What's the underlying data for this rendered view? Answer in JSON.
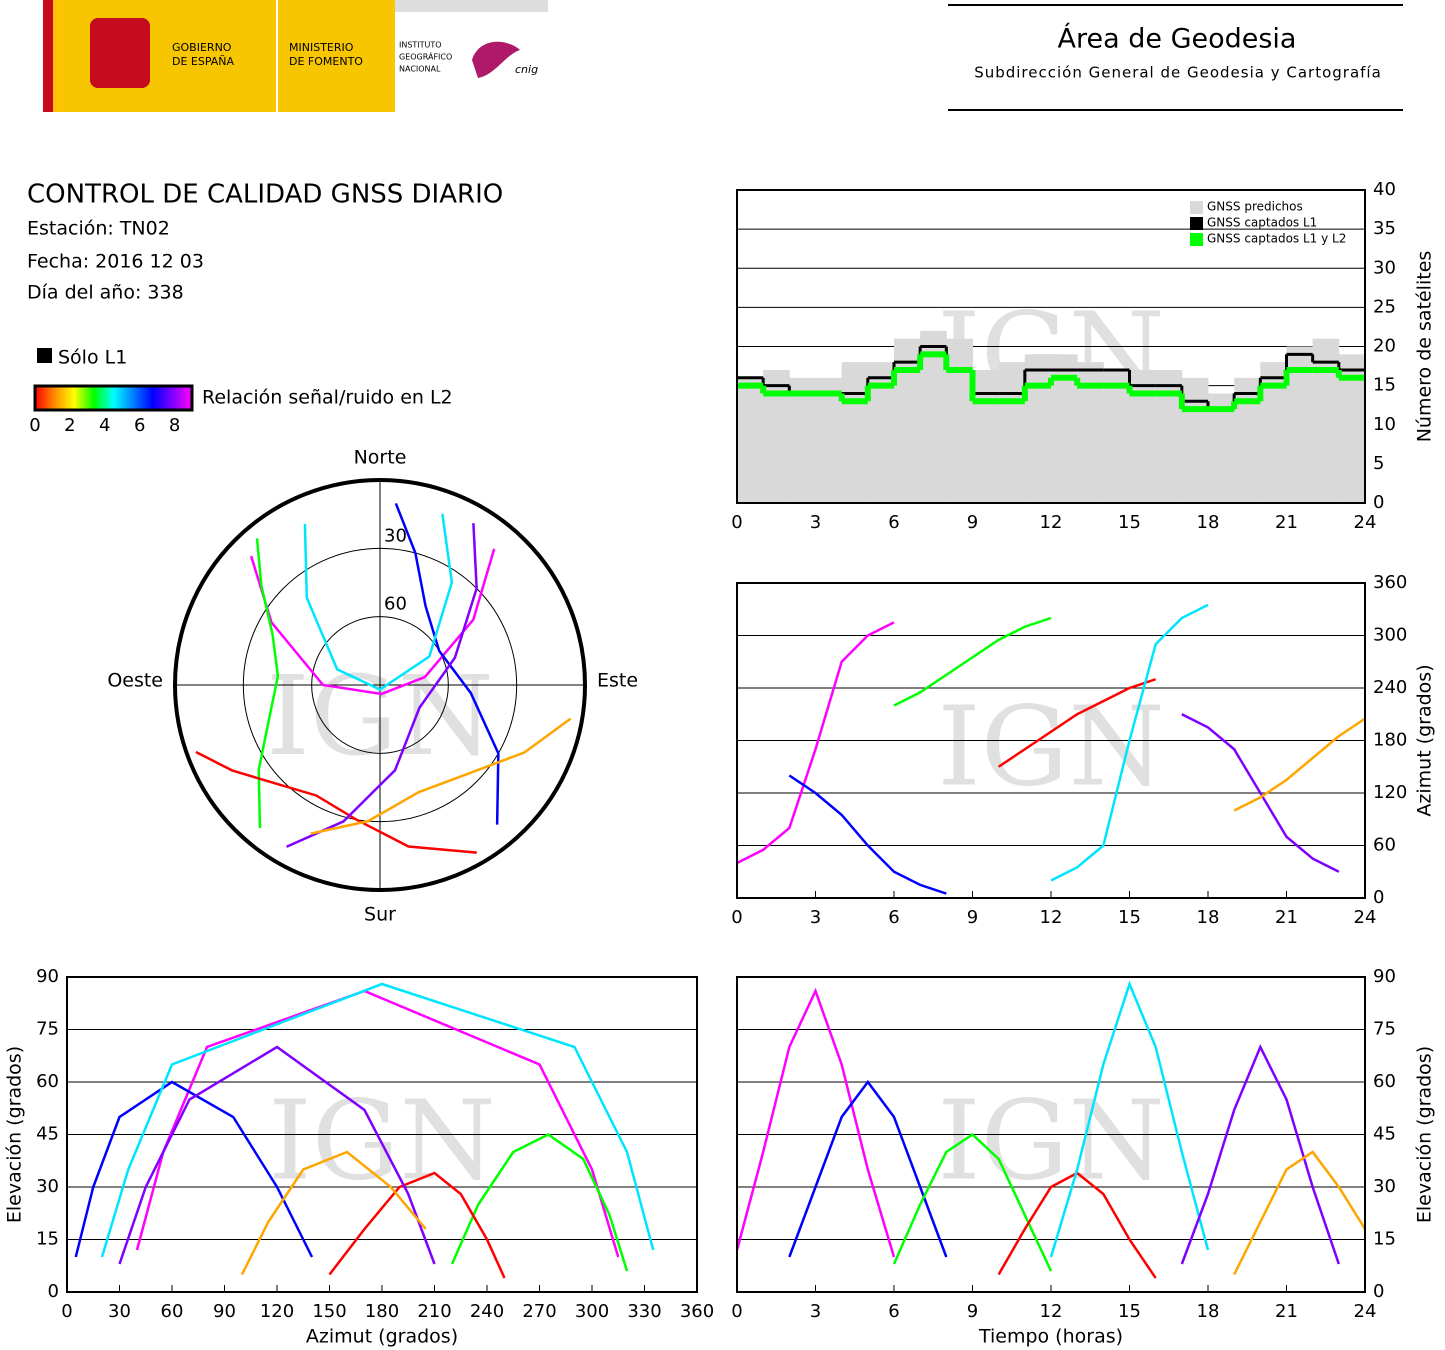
{
  "header": {
    "gobierno": [
      "GOBIERNO",
      "DE ESPAÑA"
    ],
    "ministerio": [
      "MINISTERIO",
      "DE FOMENTO"
    ],
    "instituto": [
      "INSTITUTO",
      "GEOGRÁFICO",
      "NACIONAL"
    ],
    "cnig": "cnig",
    "area": "Área de Geodesia",
    "subdireccion": "Subdirección General de Geodesia y Cartografía"
  },
  "report": {
    "title": "CONTROL DE CALIDAD GNSS DIARIO",
    "station": "Estación: TN02",
    "date": "Fecha: 2016 12 03",
    "doy": "Día del año: 338",
    "l1_only": "Sólo L1",
    "colorbar": {
      "label": "Relación señal/ruido en L2",
      "lim": [
        0,
        9
      ],
      "ticks": [
        0,
        2,
        4,
        6,
        8
      ],
      "colors": [
        "#ff0000",
        "#ff8c00",
        "#ffff00",
        "#00ff00",
        "#00ffff",
        "#0080ff",
        "#0000ff",
        "#8000ff",
        "#ff00ff"
      ]
    }
  },
  "chart_data": [
    {
      "type": "step",
      "watermark": "IGN",
      "x": [
        0,
        1,
        2,
        3,
        4,
        5,
        6,
        7,
        8,
        9,
        10,
        11,
        12,
        13,
        14,
        15,
        16,
        17,
        18,
        19,
        20,
        21,
        22,
        23
      ],
      "series": [
        {
          "name": "GNSS predichos",
          "color": "#d9d9d9",
          "values": [
            16,
            17,
            16,
            16,
            18,
            18,
            21,
            22,
            21,
            17,
            18,
            19,
            19,
            18,
            17,
            17,
            17,
            16,
            14,
            16,
            18,
            20,
            21,
            19
          ]
        },
        {
          "name": "GNSS captados L1",
          "color": "#000000",
          "values": [
            16,
            15,
            14,
            14,
            14,
            16,
            18,
            20,
            17,
            14,
            14,
            17,
            17,
            17,
            17,
            15,
            15,
            13,
            12,
            14,
            16,
            19,
            18,
            17
          ]
        },
        {
          "name": "GNSS captados L1 y L2",
          "color": "#00ff00",
          "values": [
            15,
            14,
            14,
            14,
            13,
            15,
            17,
            19,
            17,
            13,
            13,
            15,
            16,
            15,
            15,
            14,
            14,
            12,
            12,
            13,
            15,
            17,
            17,
            16
          ]
        }
      ],
      "xlim": [
        0,
        24
      ],
      "xticks": [
        0,
        3,
        6,
        9,
        12,
        15,
        18,
        21,
        24
      ],
      "ylim": [
        0,
        40
      ],
      "yticks": [
        0,
        5,
        10,
        15,
        20,
        25,
        30,
        35,
        40
      ],
      "ylabel": "Número de satélites",
      "legend": "upper right",
      "grid": true
    },
    {
      "type": "polar",
      "watermark": "IGN",
      "directions": {
        "north": "Norte",
        "south": "Sur",
        "east": "Este",
        "west": "Oeste"
      },
      "rlim": [
        90,
        0
      ],
      "rticks": [
        30,
        60
      ],
      "series": [
        {
          "color": "#ff00ff",
          "x": [
            40,
            55,
            80,
            170,
            270,
            300,
            315
          ],
          "values": [
            12,
            40,
            70,
            86,
            65,
            35,
            10
          ]
        },
        {
          "color": "#0000ff",
          "x": [
            140,
            120,
            95,
            60,
            30,
            15,
            5
          ],
          "values": [
            10,
            30,
            50,
            60,
            50,
            30,
            10
          ]
        },
        {
          "color": "#00ff00",
          "x": [
            220,
            235,
            255,
            275,
            295,
            310,
            320
          ],
          "values": [
            8,
            25,
            40,
            45,
            38,
            22,
            6
          ]
        },
        {
          "color": "#ff0000",
          "x": [
            150,
            170,
            190,
            210,
            225,
            240,
            250
          ],
          "values": [
            5,
            18,
            30,
            34,
            28,
            15,
            4
          ]
        },
        {
          "color": "#00e5ff",
          "x": [
            20,
            35,
            60,
            180,
            290,
            320,
            335
          ],
          "values": [
            10,
            35,
            65,
            88,
            70,
            40,
            12
          ]
        },
        {
          "color": "#8000ff",
          "x": [
            210,
            195,
            170,
            120,
            70,
            45,
            30
          ],
          "values": [
            8,
            28,
            52,
            70,
            55,
            30,
            8
          ]
        },
        {
          "color": "#ffa500",
          "x": [
            100,
            115,
            135,
            160,
            185,
            205
          ],
          "values": [
            5,
            20,
            35,
            40,
            30,
            18
          ]
        }
      ]
    },
    {
      "type": "track",
      "watermark": "IGN",
      "series": [
        {
          "color": "#ff00ff",
          "x": [
            0,
            1,
            2,
            3,
            4,
            5,
            6
          ],
          "values": [
            40,
            55,
            80,
            170,
            270,
            300,
            315
          ]
        },
        {
          "color": "#0000ff",
          "x": [
            2,
            3,
            4,
            5,
            6,
            7,
            8
          ],
          "values": [
            140,
            120,
            95,
            60,
            30,
            15,
            5
          ]
        },
        {
          "color": "#00ff00",
          "x": [
            6,
            7,
            8,
            9,
            10,
            11,
            12
          ],
          "values": [
            220,
            235,
            255,
            275,
            295,
            310,
            320
          ]
        },
        {
          "color": "#ff0000",
          "x": [
            10,
            11,
            12,
            13,
            14,
            15,
            16
          ],
          "values": [
            150,
            170,
            190,
            210,
            225,
            240,
            250
          ]
        },
        {
          "color": "#00e5ff",
          "x": [
            12,
            13,
            14,
            15,
            16,
            17,
            18
          ],
          "values": [
            20,
            35,
            60,
            180,
            290,
            320,
            335
          ]
        },
        {
          "color": "#8000ff",
          "x": [
            17,
            18,
            19,
            20,
            21,
            22,
            23
          ],
          "values": [
            210,
            195,
            170,
            120,
            70,
            45,
            30
          ]
        },
        {
          "color": "#ffa500",
          "x": [
            19,
            20,
            21,
            22,
            23,
            24
          ],
          "values": [
            100,
            115,
            135,
            160,
            185,
            205
          ]
        }
      ],
      "xlim": [
        0,
        24
      ],
      "xticks": [
        0,
        3,
        6,
        9,
        12,
        15,
        18,
        21,
        24
      ],
      "ylim": [
        0,
        360
      ],
      "yticks": [
        0,
        60,
        120,
        180,
        240,
        300,
        360
      ],
      "ylabel": "Azimut (grados)",
      "grid": true
    },
    {
      "type": "track",
      "watermark": "IGN",
      "series": [
        {
          "color": "#ff00ff",
          "x": [
            40,
            55,
            80,
            170,
            270,
            300,
            315
          ],
          "values": [
            12,
            40,
            70,
            86,
            65,
            35,
            10
          ]
        },
        {
          "color": "#0000ff",
          "x": [
            140,
            120,
            95,
            60,
            30,
            15,
            5
          ],
          "values": [
            10,
            30,
            50,
            60,
            50,
            30,
            10
          ]
        },
        {
          "color": "#00ff00",
          "x": [
            220,
            235,
            255,
            275,
            295,
            310,
            320
          ],
          "values": [
            8,
            25,
            40,
            45,
            38,
            22,
            6
          ]
        },
        {
          "color": "#ff0000",
          "x": [
            150,
            170,
            190,
            210,
            225,
            240,
            250
          ],
          "values": [
            5,
            18,
            30,
            34,
            28,
            15,
            4
          ]
        },
        {
          "color": "#00e5ff",
          "x": [
            20,
            35,
            60,
            180,
            290,
            320,
            335
          ],
          "values": [
            10,
            35,
            65,
            88,
            70,
            40,
            12
          ]
        },
        {
          "color": "#8000ff",
          "x": [
            210,
            195,
            170,
            120,
            70,
            45,
            30
          ],
          "values": [
            8,
            28,
            52,
            70,
            55,
            30,
            8
          ]
        },
        {
          "color": "#ffa500",
          "x": [
            100,
            115,
            135,
            160,
            185,
            205
          ],
          "values": [
            5,
            20,
            35,
            40,
            30,
            18
          ]
        }
      ],
      "xlim": [
        0,
        360
      ],
      "xticks": [
        0,
        30,
        60,
        90,
        120,
        150,
        180,
        210,
        240,
        270,
        300,
        330,
        360
      ],
      "ylim": [
        0,
        90
      ],
      "yticks": [
        0,
        15,
        30,
        45,
        60,
        75,
        90
      ],
      "xlabel": "Azimut (grados)",
      "ylabel": "Elevación (grados)",
      "grid": true
    },
    {
      "type": "track",
      "watermark": "IGN",
      "series": [
        {
          "color": "#ff00ff",
          "x": [
            0,
            1,
            2,
            3,
            4,
            5,
            6
          ],
          "values": [
            12,
            40,
            70,
            86,
            65,
            35,
            10
          ]
        },
        {
          "color": "#0000ff",
          "x": [
            2,
            3,
            4,
            5,
            6,
            7,
            8
          ],
          "values": [
            10,
            30,
            50,
            60,
            50,
            30,
            10
          ]
        },
        {
          "color": "#00ff00",
          "x": [
            6,
            7,
            8,
            9,
            10,
            11,
            12
          ],
          "values": [
            8,
            25,
            40,
            45,
            38,
            22,
            6
          ]
        },
        {
          "color": "#ff0000",
          "x": [
            10,
            11,
            12,
            13,
            14,
            15,
            16
          ],
          "values": [
            5,
            18,
            30,
            34,
            28,
            15,
            4
          ]
        },
        {
          "color": "#00e5ff",
          "x": [
            12,
            13,
            14,
            15,
            16,
            17,
            18
          ],
          "values": [
            10,
            35,
            65,
            88,
            70,
            40,
            12
          ]
        },
        {
          "color": "#8000ff",
          "x": [
            17,
            18,
            19,
            20,
            21,
            22,
            23
          ],
          "values": [
            8,
            28,
            52,
            70,
            55,
            30,
            8
          ]
        },
        {
          "color": "#ffa500",
          "x": [
            19,
            20,
            21,
            22,
            23,
            24
          ],
          "values": [
            5,
            20,
            35,
            40,
            30,
            18
          ]
        }
      ],
      "xlim": [
        0,
        24
      ],
      "xticks": [
        0,
        3,
        6,
        9,
        12,
        15,
        18,
        21,
        24
      ],
      "ylim": [
        0,
        90
      ],
      "yticks": [
        0,
        15,
        30,
        45,
        60,
        75,
        90
      ],
      "xlabel": "Tiempo (horas)",
      "ylabel": "Elevación (grados)",
      "grid": true
    }
  ]
}
